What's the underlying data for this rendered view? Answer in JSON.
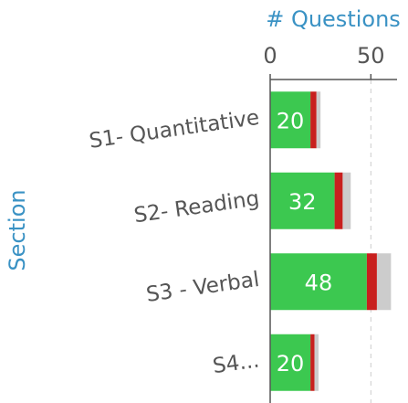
{
  "chart_data": {
    "type": "bar",
    "orientation": "horizontal",
    "stacked": true,
    "xlabel": "# Questions",
    "ylabel": "Section",
    "categories": [
      "S1- Quantitative",
      "S2- Reading",
      "S3 - Verbal",
      "S4..."
    ],
    "series": [
      {
        "color": "#3cc850",
        "values": [
          20,
          32,
          48,
          20
        ]
      },
      {
        "color": "#c8201e",
        "values": [
          3,
          4,
          5,
          2
        ]
      },
      {
        "color": "#cccccc",
        "values": [
          2,
          4,
          7,
          2
        ]
      }
    ],
    "xlim": [
      0,
      63
    ],
    "xticks": [
      0,
      50
    ],
    "grid": true
  }
}
